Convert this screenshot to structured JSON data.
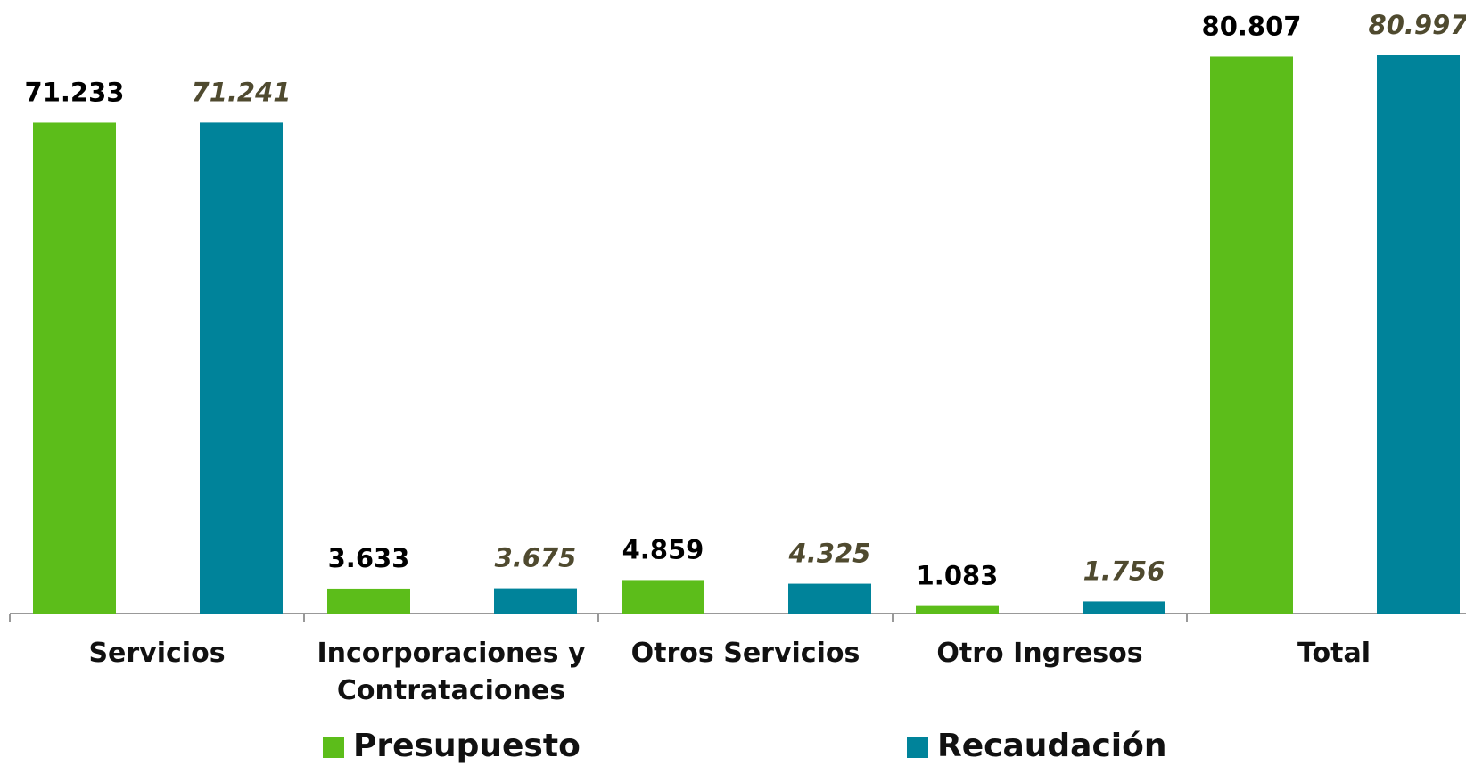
{
  "chart_data": {
    "type": "bar",
    "categories": [
      "Servicios",
      "Incorporaciones y Contrataciones",
      "Otros Servicios",
      "Otro Ingresos",
      "Total"
    ],
    "series": [
      {
        "name": "Presupuesto",
        "color": "#5cbd1a",
        "values": [
          71.233,
          3.633,
          4.859,
          1.083,
          80.807
        ]
      },
      {
        "name": "Recaudación",
        "color": "#00839a",
        "values": [
          71.241,
          3.675,
          4.325,
          1.756,
          80.997
        ]
      }
    ]
  }
}
